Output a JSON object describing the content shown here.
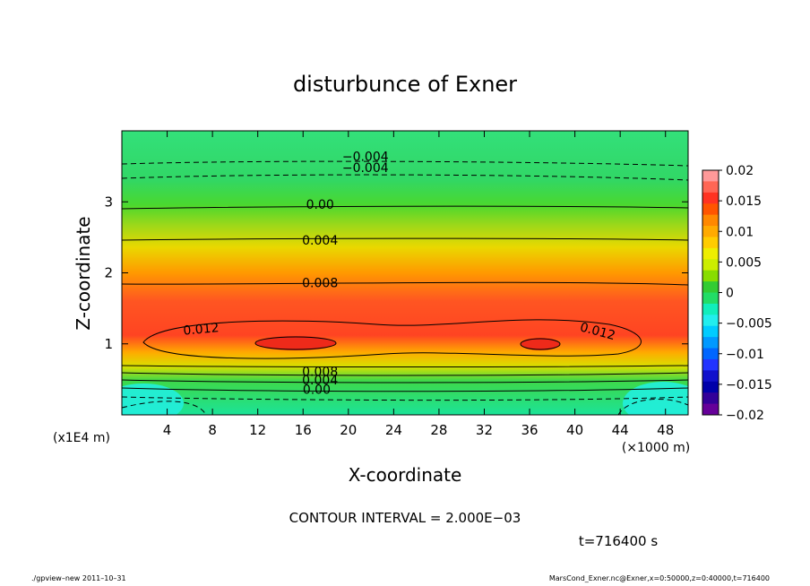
{
  "chart_data": {
    "type": "contour",
    "title": "disturbunce of Exner",
    "xlabel": "X-coordinate",
    "ylabel": "Z-coordinate",
    "x_unit_label": "(×1000 m)",
    "y_unit_label": "(x1E4 m)",
    "xlim": [
      0,
      50
    ],
    "ylim": [
      0,
      4
    ],
    "x_ticks": [
      4,
      8,
      12,
      16,
      20,
      24,
      28,
      32,
      36,
      40,
      44,
      48
    ],
    "y_ticks": [
      1,
      2,
      3
    ],
    "colorbar": {
      "min": -0.02,
      "max": 0.02,
      "levels": [
        0.02,
        0.015,
        0.01,
        0.005,
        0,
        -0.005,
        -0.01,
        -0.015,
        -0.02
      ],
      "labels": [
        "0.02",
        "0.015",
        "0.01",
        "0.005",
        "0",
        "−0.005",
        "−0.01",
        "−0.015",
        "−0.02"
      ]
    },
    "contour_interval": 0.002,
    "contour_labels": [
      {
        "text": "−0.004",
        "x": 21.5,
        "z": 3.63,
        "rotate": 0
      },
      {
        "text": "−0.004",
        "x": 21.5,
        "z": 3.47,
        "rotate": 0
      },
      {
        "text": "0.00",
        "x": 17.5,
        "z": 2.95,
        "rotate": 0
      },
      {
        "text": "0.004",
        "x": 17.5,
        "z": 2.45,
        "rotate": 0
      },
      {
        "text": "0.008",
        "x": 17.5,
        "z": 1.85,
        "rotate": 0
      },
      {
        "text": "0.012",
        "x": 7.0,
        "z": 1.2,
        "rotate": -5
      },
      {
        "text": "0.012",
        "x": 42.0,
        "z": 1.17,
        "rotate": 15
      },
      {
        "text": "0.008",
        "x": 17.5,
        "z": 0.6,
        "rotate": 0
      },
      {
        "text": "0.004",
        "x": 17.5,
        "z": 0.48,
        "rotate": 0
      },
      {
        "text": "0.00",
        "x": 17.2,
        "z": 0.35,
        "rotate": 0
      }
    ]
  },
  "annotation": {
    "contour_interval_text": "CONTOUR INTERVAL = 2.000E−03",
    "time_text": "t=716400 s"
  },
  "footer": {
    "left": "./gpview–new  2011–10–31",
    "right": "MarsCond_Exner.nc@Exner,x=0:50000,z=0:40000,t=716400"
  }
}
